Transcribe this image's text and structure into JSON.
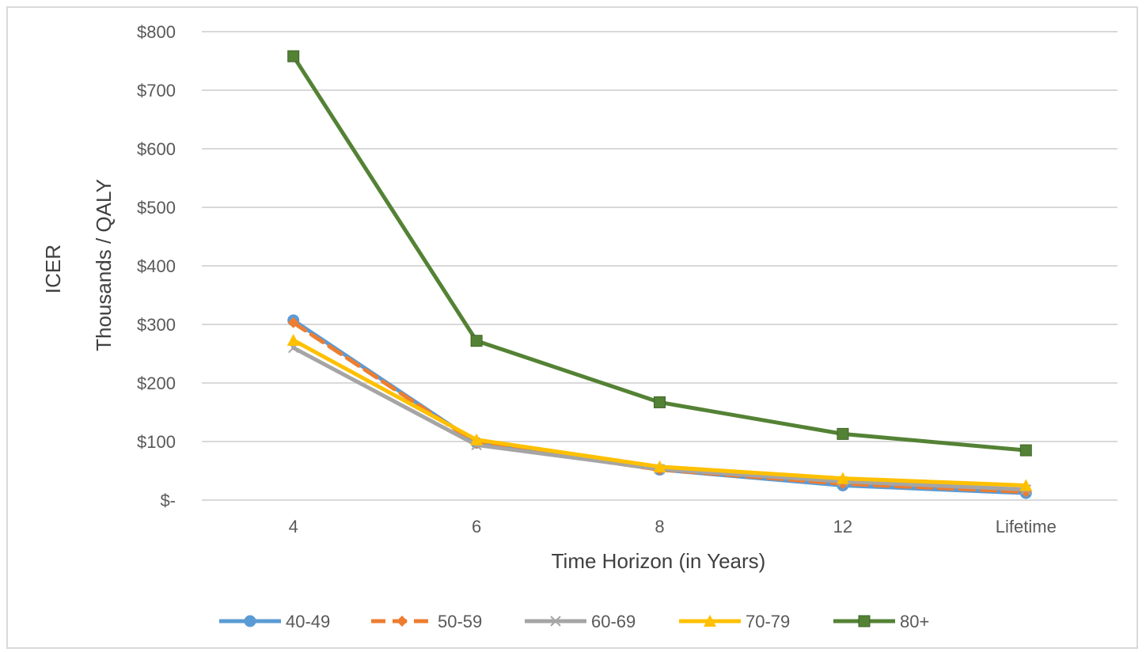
{
  "chart_data": {
    "type": "line",
    "title": "",
    "xlabel": "Time Horizon (in Years)",
    "ylabel_lines": [
      "ICER",
      "Thousands / QALY"
    ],
    "categories": [
      "4",
      "6",
      "8",
      "12",
      "Lifetime"
    ],
    "ylim": [
      0,
      800
    ],
    "y_ticks": [
      0,
      100,
      200,
      300,
      400,
      500,
      600,
      700,
      800
    ],
    "y_tick_labels": [
      "$-",
      "$100",
      "$200",
      "$300",
      "$400",
      "$500",
      "$600",
      "$700",
      "$800"
    ],
    "grid": true,
    "legend_position": "bottom",
    "series": [
      {
        "name": "40-49",
        "values": [
          307,
          98,
          52,
          25,
          12
        ],
        "color": "#5b9bd5",
        "marker": "circle",
        "dash": false
      },
      {
        "name": "50-59",
        "values": [
          303,
          97,
          52,
          28,
          14
        ],
        "color": "#ed7d31",
        "marker": "diamond",
        "dash": true
      },
      {
        "name": "60-69",
        "values": [
          260,
          94,
          53,
          32,
          18
        ],
        "color": "#a5a5a5",
        "marker": "x",
        "dash": false
      },
      {
        "name": "70-79",
        "values": [
          273,
          103,
          57,
          37,
          25
        ],
        "color": "#ffc000",
        "marker": "triangle",
        "dash": false
      },
      {
        "name": "80+",
        "values": [
          758,
          272,
          167,
          113,
          85
        ],
        "color": "#548235",
        "marker": "square",
        "dash": false
      }
    ]
  }
}
